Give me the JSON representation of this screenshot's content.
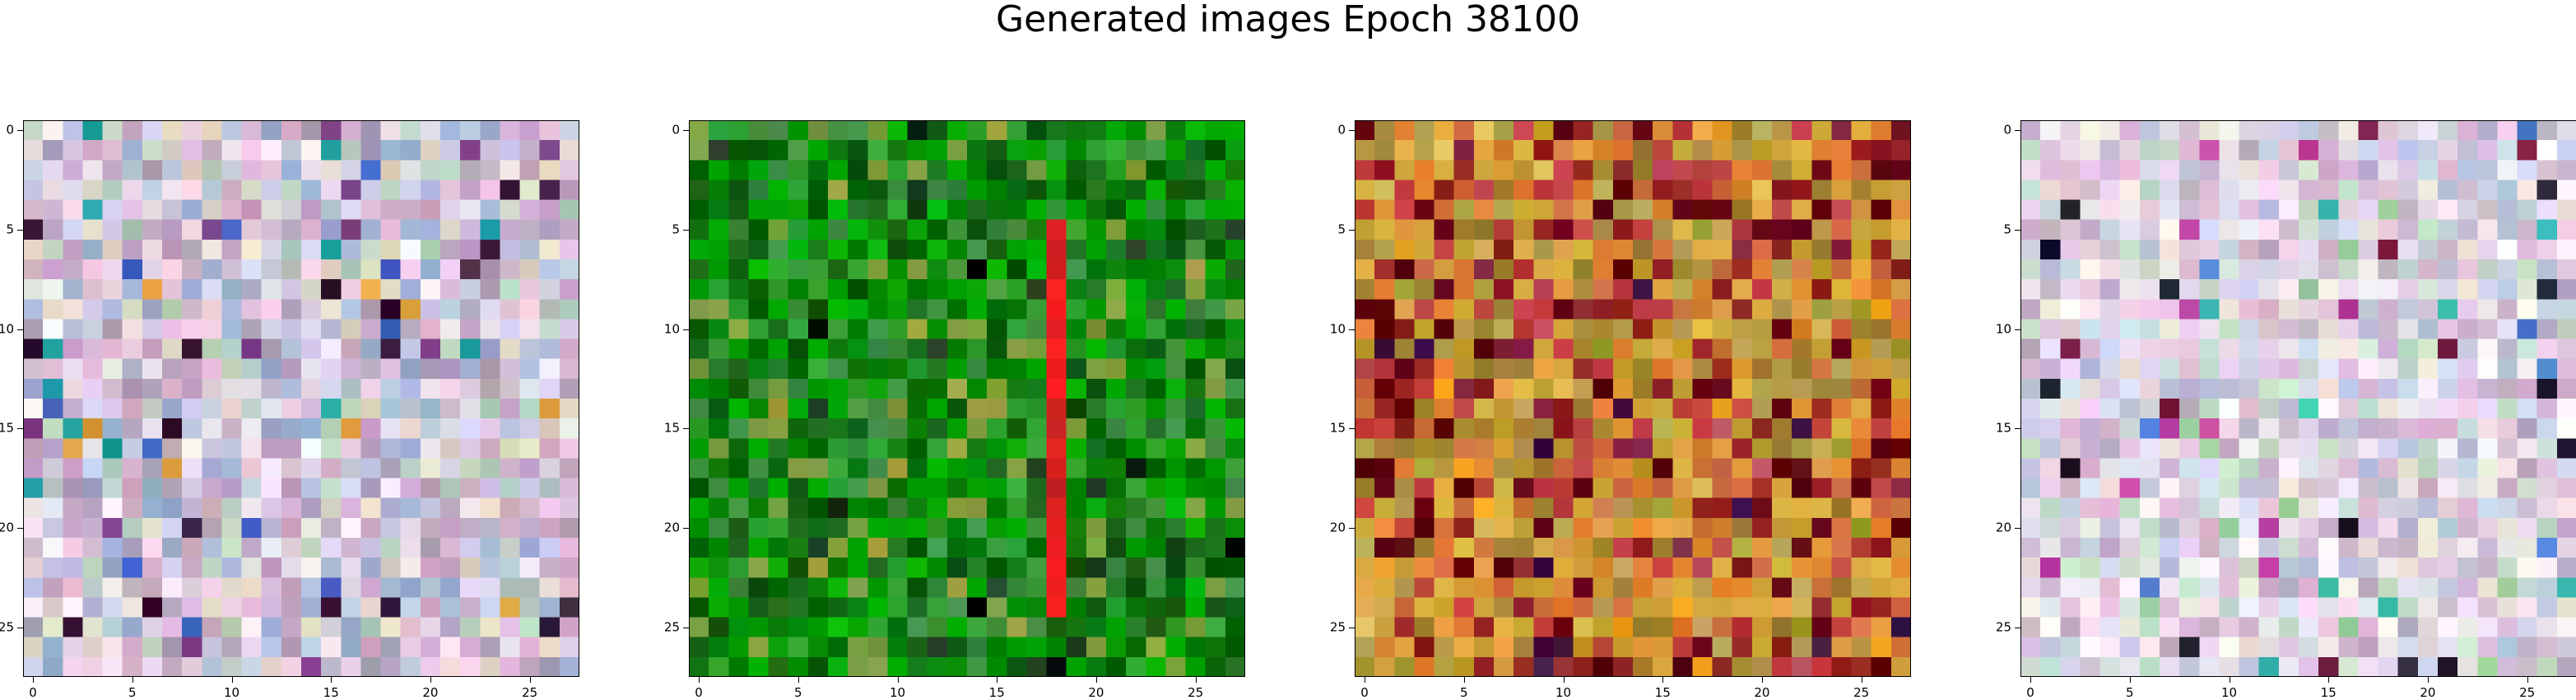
{
  "figure": {
    "title": "Generated images Epoch 38100",
    "grid_size": 28,
    "tick_labels": [
      "0",
      "5",
      "10",
      "15",
      "20",
      "25"
    ],
    "panels": [
      {
        "name": "pastel-mixed",
        "base": "#c8bccc",
        "variation": 0.45,
        "palette": [
          "#e8c8e0",
          "#c0c8e0",
          "#d0b0c8",
          "#b8d0c0",
          "#e0d8c8",
          "#c8a8c8",
          "#a0b0d0",
          "#d8d0e8",
          "#f0e8f0",
          "#b0a0b8",
          "#80408c",
          "#402040",
          "#301030",
          "#20a0a0",
          "#e0a040",
          "#4060c0"
        ]
      },
      {
        "name": "green",
        "base": "#108010",
        "variation": 0.35,
        "palette": [
          "#0a7a0a",
          "#008800",
          "#105810",
          "#00a000",
          "#207020",
          "#30a030",
          "#006000",
          "#409040",
          "#80a040",
          "#00b000",
          "#204020",
          "#001000",
          "#a0a040"
        ],
        "stripe_col": 18,
        "stripe_color": "#e02020"
      },
      {
        "name": "orange-red",
        "base": "#d09040",
        "variation": 0.4,
        "palette": [
          "#e0a040",
          "#c8a030",
          "#d07040",
          "#b8a050",
          "#c04040",
          "#e08030",
          "#a08030",
          "#d8b040",
          "#902020",
          "#600010",
          "#e0c060",
          "#c05060",
          "#a0a030",
          "#802040",
          "#f0a020",
          "#401040"
        ]
      },
      {
        "name": "pastel-light",
        "base": "#d8c8d8",
        "variation": 0.45,
        "palette": [
          "#e8d0e8",
          "#d0d8e8",
          "#e0c0d8",
          "#c8e0d0",
          "#f0e8e0",
          "#d0b8d0",
          "#c0c8e0",
          "#e8e0f0",
          "#f8f0f8",
          "#c0b0c8",
          "#c040a0",
          "#202030",
          "#40c0b0",
          "#5080d0",
          "#802040",
          "#a0d0a0"
        ]
      }
    ]
  }
}
